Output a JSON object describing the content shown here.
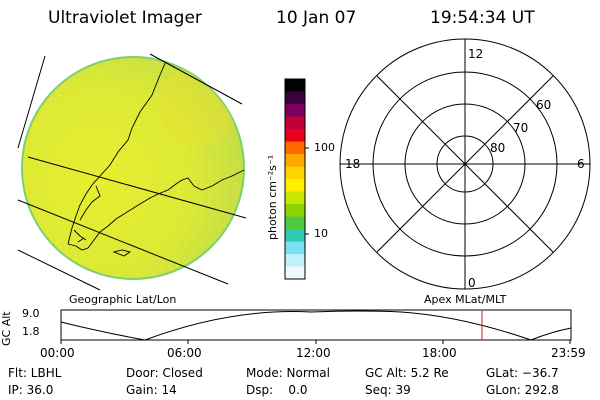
{
  "header": {
    "title": "Ultraviolet Imager",
    "date": "10 Jan 07",
    "time": "19:54:34 UT"
  },
  "colorbar": {
    "unit": "photon cm⁻²s⁻¹",
    "ticks": [
      "100",
      "10"
    ],
    "colors": [
      "#000000",
      "#3a0040",
      "#7a0060",
      "#c0003a",
      "#e8001c",
      "#ff6a00",
      "#ffa600",
      "#ffd200",
      "#fff000",
      "#c8e600",
      "#8cd400",
      "#50c840",
      "#30c8b0",
      "#78e0f0",
      "#c0f0f8",
      "#f0f8fc"
    ]
  },
  "geo_panel": {
    "label": "Geographic Lat/Lon"
  },
  "polar_panel": {
    "label": "Apex MLat/MLT",
    "labels": {
      "top": "12",
      "left": "18",
      "right": "6",
      "bottom": "0",
      "r60": "60",
      "r70": "70",
      "r80": "80"
    }
  },
  "altitude_plot": {
    "ylabel": "GC Alt",
    "yticks": [
      "9.0",
      "1.8"
    ],
    "xticks": [
      "00:00",
      "06:00",
      "12:00",
      "18:00",
      "23:59"
    ]
  },
  "metadata": {
    "row1": [
      "Flt: LBHL",
      "Door: Closed",
      "Mode: Normal",
      "GC Alt: 5.2 Re",
      "GLat: −36.7"
    ],
    "row2": [
      "IP: 36.0",
      "Gain: 14",
      "Dsp:    0.0",
      "Seq: 39",
      "GLon: 292.8"
    ]
  }
}
